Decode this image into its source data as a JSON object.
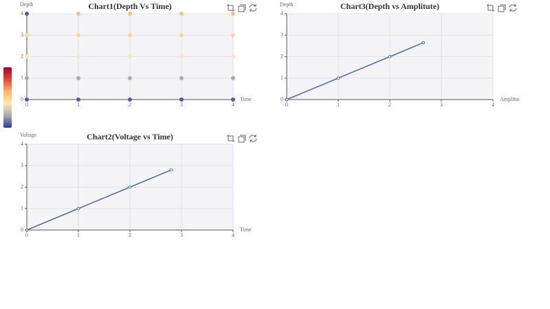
{
  "chart_data": [
    {
      "type": "scatter",
      "title": "Chart1(Depth Vs Time)",
      "xlabel": "Time",
      "ylabel": "Depth",
      "x": [
        0,
        0,
        0,
        0,
        0,
        1,
        1,
        1,
        1,
        1,
        2,
        2,
        2,
        2,
        2,
        3,
        3,
        3,
        3,
        3,
        4,
        4,
        4,
        4,
        4
      ],
      "y": [
        0,
        1,
        2,
        3,
        4,
        0,
        1,
        2,
        3,
        4,
        0,
        1,
        2,
        3,
        4,
        0,
        1,
        2,
        3,
        4,
        0,
        1,
        2,
        3,
        4
      ],
      "point_colors": [
        "#4f5aa6",
        "#a9a9b3",
        "#fde8b4",
        "#fcd88f",
        "#4f5aa6",
        "#4f5aa6",
        "#a9a9b3",
        "#fde8b4",
        "#fcd88f",
        "#f8c37c",
        "#4f5aa6",
        "#a9a9b3",
        "#fde8b4",
        "#fcd88f",
        "#f8c37c",
        "#4f5aa6",
        "#a9a9b3",
        "#fde8b4",
        "#fcd88f",
        "#f8c37c",
        "#4f5aa6",
        "#a9a9b3",
        "#fde8b4",
        "#fcd88f",
        "#f8c37c"
      ],
      "visual_map_colors": [
        "#a50026",
        "#e0483a",
        "#fbb668",
        "#fde8b4",
        "#a9a9b3",
        "#313695"
      ],
      "xlim": [
        0,
        4
      ],
      "ylim": [
        0,
        4
      ],
      "xticks": [
        0,
        1,
        2,
        3,
        4
      ],
      "yticks": [
        0,
        1,
        2,
        3,
        4
      ],
      "grid": true
    },
    {
      "type": "line",
      "title": "Chart2(Voltage vs Time)",
      "xlabel": "Time",
      "ylabel": "Voltage",
      "series": [
        {
          "color": "#4a6aab",
          "x": [
            0,
            1,
            2,
            2.8
          ],
          "values": [
            0,
            1,
            2,
            2.8
          ]
        }
      ],
      "xlim": [
        0,
        4
      ],
      "ylim": [
        0,
        4
      ],
      "xticks": [
        0,
        1,
        2,
        3,
        4
      ],
      "yticks": [
        0,
        1,
        2,
        3,
        4
      ],
      "grid": true
    },
    {
      "type": "line",
      "title": "Chart3(Depth vs Amplitute)",
      "xlabel": "Amplitude",
      "ylabel": "Depth",
      "series": [
        {
          "color": "#4a6aab",
          "x": [
            0,
            1,
            2,
            2.65
          ],
          "values": [
            0,
            1,
            2,
            2.65
          ]
        }
      ],
      "xlim": [
        0,
        4
      ],
      "ylim": [
        0,
        4
      ],
      "xticks": [
        0,
        1,
        2,
        3,
        4
      ],
      "yticks": [
        0,
        1,
        2,
        3,
        4
      ],
      "grid": true
    }
  ]
}
